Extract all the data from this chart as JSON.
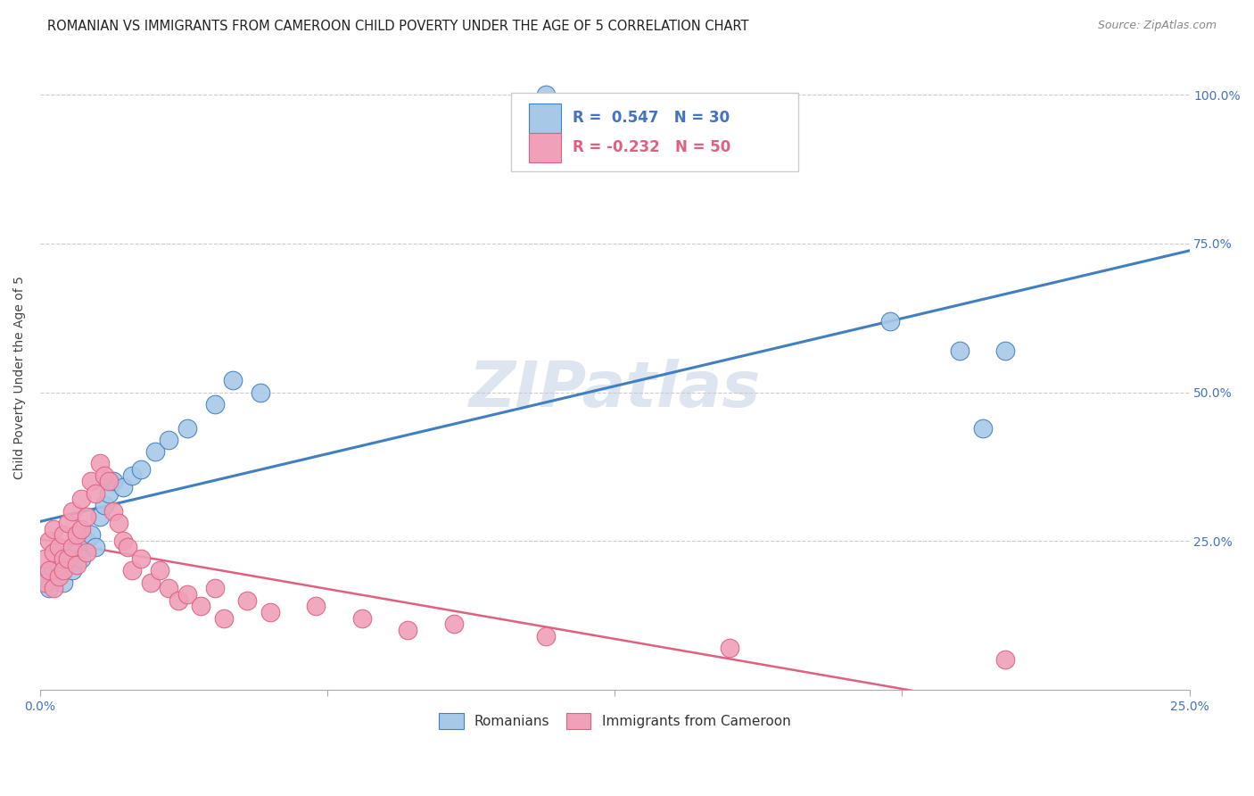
{
  "title": "ROMANIAN VS IMMIGRANTS FROM CAMEROON CHILD POVERTY UNDER THE AGE OF 5 CORRELATION CHART",
  "source": "Source: ZipAtlas.com",
  "ylabel": "Child Poverty Under the Age of 5",
  "ytick_labels": [
    "100.0%",
    "75.0%",
    "50.0%",
    "25.0%"
  ],
  "ytick_positions": [
    1.0,
    0.75,
    0.5,
    0.25
  ],
  "xlim": [
    0.0,
    0.25
  ],
  "ylim": [
    0.0,
    1.05
  ],
  "watermark": "ZIPatlas",
  "blue_color": "#a8c8e8",
  "blue_line_color": "#4080c0",
  "pink_color": "#f0a0b8",
  "pink_line_color": "#e06080",
  "legend_label1": "Romanians",
  "legend_label2": "Immigrants from Cameroon",
  "R1": 0.547,
  "N1": 30,
  "R2": -0.232,
  "N2": 50,
  "blue_scatter_x": [
    0.001,
    0.002,
    0.003,
    0.004,
    0.005,
    0.006,
    0.007,
    0.008,
    0.009,
    0.01,
    0.011,
    0.012,
    0.013,
    0.014,
    0.015,
    0.016,
    0.018,
    0.02,
    0.022,
    0.025,
    0.028,
    0.032,
    0.038,
    0.042,
    0.048,
    0.11,
    0.185,
    0.2,
    0.205,
    0.21
  ],
  "blue_scatter_y": [
    0.19,
    0.17,
    0.2,
    0.21,
    0.18,
    0.22,
    0.2,
    0.23,
    0.22,
    0.25,
    0.26,
    0.24,
    0.29,
    0.31,
    0.33,
    0.35,
    0.34,
    0.36,
    0.37,
    0.4,
    0.42,
    0.44,
    0.48,
    0.52,
    0.5,
    1.0,
    0.62,
    0.57,
    0.44,
    0.57
  ],
  "pink_scatter_x": [
    0.001,
    0.001,
    0.002,
    0.002,
    0.003,
    0.003,
    0.003,
    0.004,
    0.004,
    0.005,
    0.005,
    0.005,
    0.006,
    0.006,
    0.007,
    0.007,
    0.008,
    0.008,
    0.009,
    0.009,
    0.01,
    0.01,
    0.011,
    0.012,
    0.013,
    0.014,
    0.015,
    0.016,
    0.017,
    0.018,
    0.019,
    0.02,
    0.022,
    0.024,
    0.026,
    0.028,
    0.03,
    0.032,
    0.035,
    0.038,
    0.04,
    0.045,
    0.05,
    0.06,
    0.07,
    0.08,
    0.09,
    0.11,
    0.15,
    0.21
  ],
  "pink_scatter_y": [
    0.22,
    0.18,
    0.25,
    0.2,
    0.23,
    0.27,
    0.17,
    0.24,
    0.19,
    0.22,
    0.26,
    0.2,
    0.28,
    0.22,
    0.3,
    0.24,
    0.26,
    0.21,
    0.32,
    0.27,
    0.29,
    0.23,
    0.35,
    0.33,
    0.38,
    0.36,
    0.35,
    0.3,
    0.28,
    0.25,
    0.24,
    0.2,
    0.22,
    0.18,
    0.2,
    0.17,
    0.15,
    0.16,
    0.14,
    0.17,
    0.12,
    0.15,
    0.13,
    0.14,
    0.12,
    0.1,
    0.11,
    0.09,
    0.07,
    0.05
  ],
  "title_fontsize": 10.5,
  "source_fontsize": 9,
  "axis_label_fontsize": 10,
  "tick_fontsize": 10,
  "legend_fontsize": 12,
  "watermark_fontsize": 52,
  "background_color": "#ffffff"
}
